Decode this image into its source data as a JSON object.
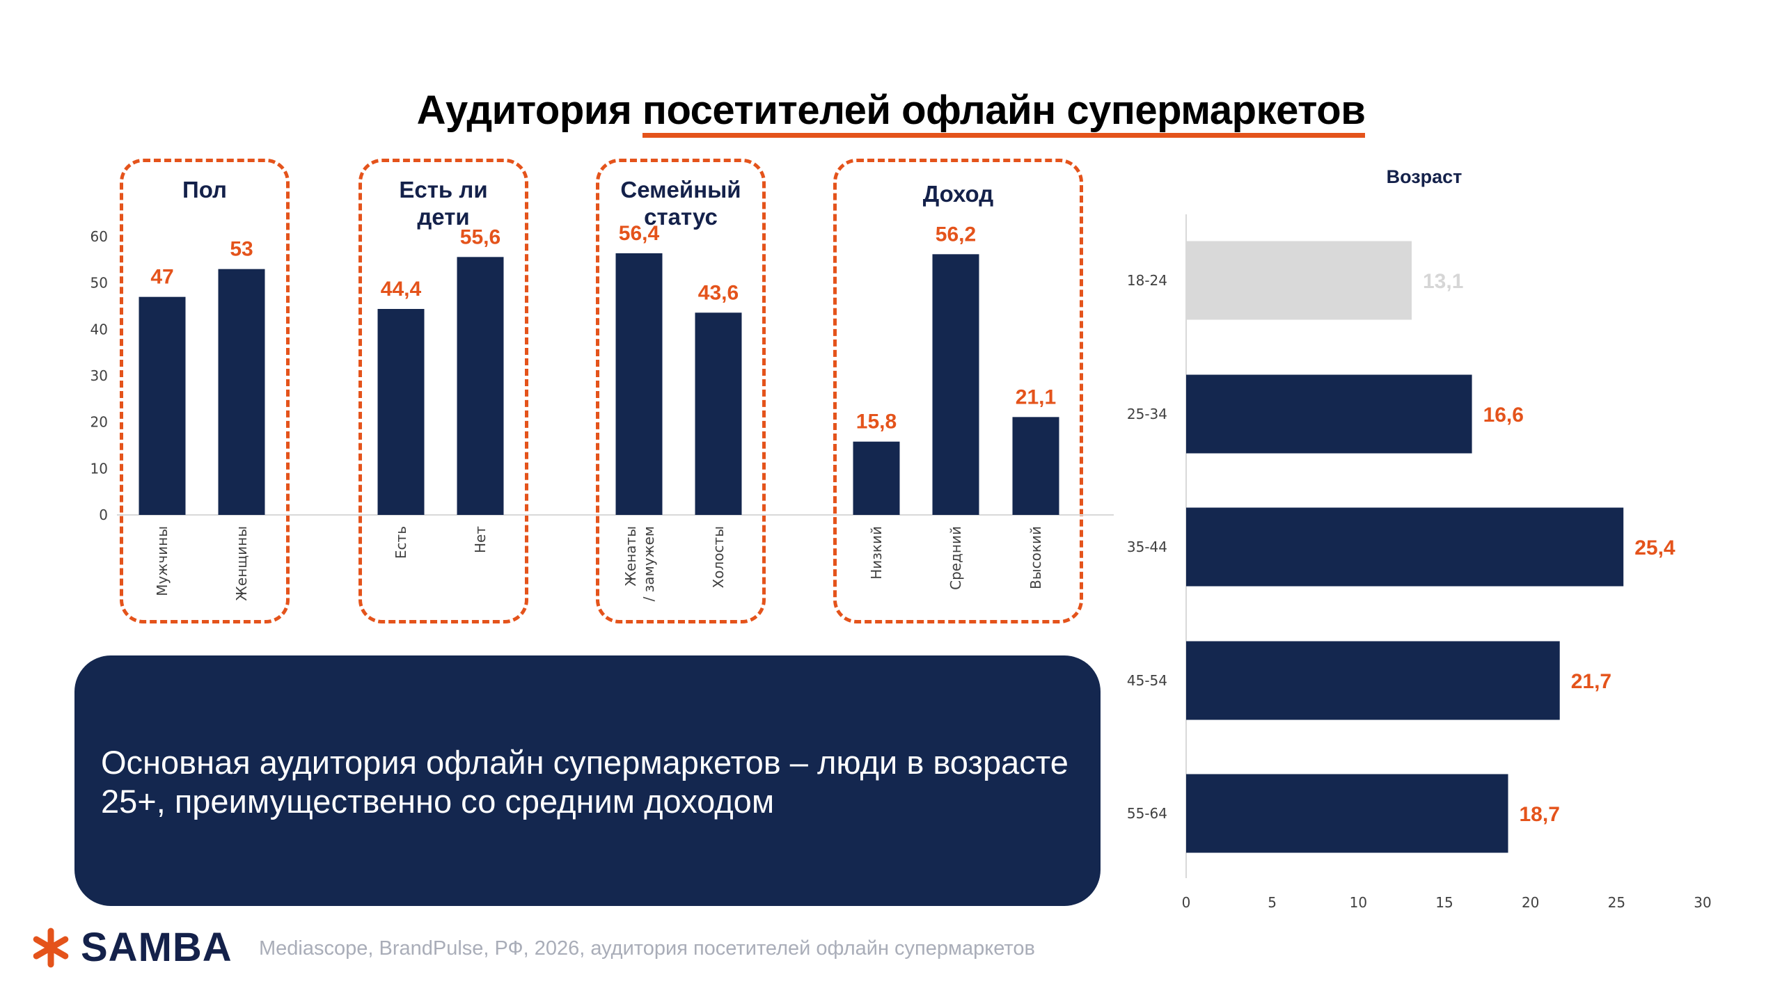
{
  "title": {
    "plain": "Аудитория ",
    "underlined": "посетителей офлайн супермаркетов"
  },
  "colors": {
    "bar": "#14274f",
    "accent": "#e4531b",
    "muted_bar": "#d9d9d9",
    "muted_label": "#d6d6d6"
  },
  "chart_data": [
    {
      "type": "bar",
      "title": "",
      "ylim": [
        0,
        60
      ],
      "yticks": [
        "0",
        "10",
        "20",
        "30",
        "40",
        "50",
        "60"
      ],
      "groups": [
        {
          "title": "Пол",
          "categories": [
            "Мужчины",
            "Женщины"
          ],
          "values": [
            47,
            53
          ],
          "labels": [
            "47",
            "53"
          ]
        },
        {
          "title": "Есть ли дети",
          "categories": [
            "Есть",
            "Нет"
          ],
          "values": [
            44.4,
            55.6
          ],
          "labels": [
            "44,4",
            "55,6"
          ]
        },
        {
          "title": "Семейный статус",
          "categories": [
            "Женаты / замужем",
            "Холосты"
          ],
          "values": [
            56.4,
            43.6
          ],
          "labels": [
            "56,4",
            "43,6"
          ]
        },
        {
          "title": "Доход",
          "categories": [
            "Низкий",
            "Средний",
            "Высокий"
          ],
          "values": [
            15.8,
            56.2,
            21.1
          ],
          "labels": [
            "15,8",
            "56,2",
            "21,1"
          ]
        }
      ]
    },
    {
      "type": "bar",
      "orientation": "horizontal",
      "title": "Возраст",
      "categories": [
        "18-24",
        "25-34",
        "35-44",
        "45-54",
        "55-64"
      ],
      "values": [
        13.1,
        16.6,
        25.4,
        21.7,
        18.7
      ],
      "labels": [
        "13,1",
        "16,6",
        "25,4",
        "21,7",
        "18,7"
      ],
      "muted": [
        true,
        false,
        false,
        false,
        false
      ],
      "xlim": [
        0,
        30
      ],
      "xticks": [
        "0",
        "5",
        "10",
        "15",
        "20",
        "25",
        "30"
      ]
    }
  ],
  "conclusion": "Основная аудитория офлайн супермаркетов – люди в возрасте 25+, преимущественно со средним доходом",
  "footer": {
    "brand": "SAMBA",
    "logo_icon": "asterisk-icon",
    "source": "Mediascope, BrandPulse, РФ, 2026, аудитория посетителей офлайн супермаркетов"
  }
}
